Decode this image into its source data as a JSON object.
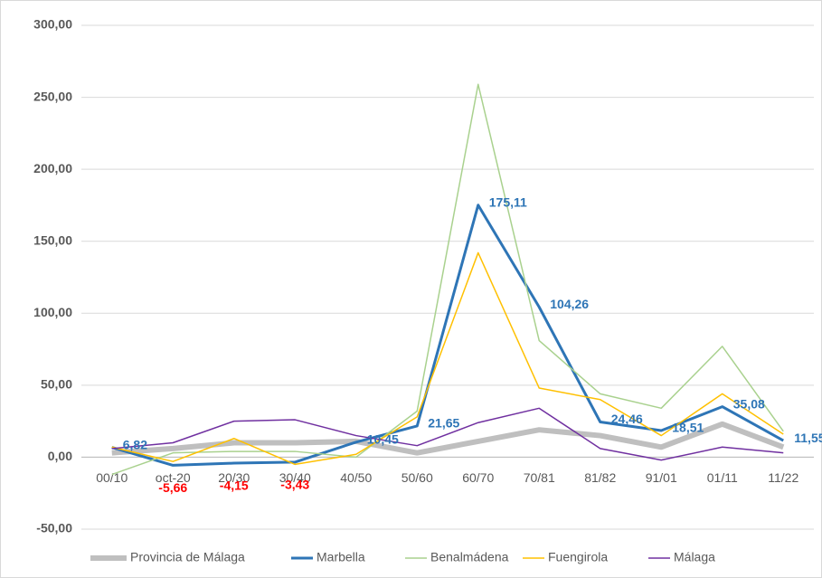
{
  "chart_data": {
    "type": "line",
    "categories": [
      "00/10",
      "oct-20",
      "20/30",
      "30/40",
      "40/50",
      "50/60",
      "60/70",
      "70/81",
      "81/82",
      "91/01",
      "01/11",
      "11/22"
    ],
    "ylim": [
      -50,
      300
    ],
    "yticks": [
      {
        "value": -50,
        "label": "-50,00"
      },
      {
        "value": 0,
        "label": "0,00"
      },
      {
        "value": 50,
        "label": "50,00"
      },
      {
        "value": 100,
        "label": "100,00"
      },
      {
        "value": 150,
        "label": "150,00"
      },
      {
        "value": 200,
        "label": "200,00"
      },
      {
        "value": 250,
        "label": "250,00"
      },
      {
        "value": 300,
        "label": "300,00"
      }
    ],
    "grid": true,
    "legend": "bottom",
    "label_color": "#2e75b6",
    "negative_label_color": "#ff0000",
    "series": [
      {
        "name": "Provincia de Málaga",
        "color": "#bfbfbf",
        "width": 6,
        "values": [
          3,
          6,
          10,
          10,
          11,
          3,
          11,
          19,
          15,
          7,
          23,
          7
        ]
      },
      {
        "name": "Marbella",
        "color": "#2e75b6",
        "width": 3,
        "values": [
          6.82,
          -5.66,
          -4.15,
          -3.43,
          10.45,
          21.65,
          175.11,
          104.26,
          24.46,
          18.51,
          35.08,
          11.55
        ],
        "value_labels": [
          "6,82",
          "-5,66",
          "-4,15",
          "-3,43",
          "10,45",
          "21,65",
          "175,11",
          "104,26",
          "24,46",
          "18,51",
          "35,08",
          "11,55"
        ]
      },
      {
        "name": "Benalmádena",
        "color": "#a9d18e",
        "width": 1.5,
        "values": [
          -12,
          3,
          4,
          4,
          0,
          32,
          259,
          81,
          44,
          34,
          77,
          18
        ]
      },
      {
        "name": "Fuengirola",
        "color": "#ffc000",
        "width": 1.5,
        "values": [
          7,
          -3,
          13,
          -5,
          2,
          28,
          142,
          48,
          40,
          15,
          44,
          16
        ]
      },
      {
        "name": "Málaga",
        "color": "#7030a0",
        "width": 1.5,
        "values": [
          6,
          10,
          25,
          26,
          15,
          8,
          24,
          34,
          6,
          -2,
          7,
          3
        ]
      }
    ]
  }
}
